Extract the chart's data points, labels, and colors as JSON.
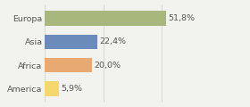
{
  "categories": [
    "Europa",
    "Asia",
    "Africa",
    "America"
  ],
  "values": [
    51.8,
    22.4,
    20.0,
    5.9
  ],
  "labels": [
    "51,8%",
    "22,4%",
    "20,0%",
    "5,9%"
  ],
  "bar_colors": [
    "#a8b87c",
    "#6b8cba",
    "#e8aa72",
    "#f5d76e"
  ],
  "background_color": "#f2f2ee",
  "xlim": [
    0,
    75
  ],
  "bar_height": 0.62,
  "label_fontsize": 6.8,
  "category_fontsize": 6.8,
  "grid_color": "#cccccc",
  "text_color": "#555555"
}
